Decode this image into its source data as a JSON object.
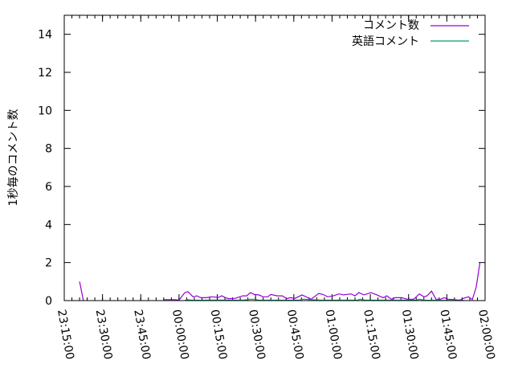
{
  "chart_data": {
    "type": "line",
    "title": "",
    "xlabel": "",
    "ylabel": "1秒毎のコメント数",
    "xlim": [
      "23:15:00",
      "02:00:00"
    ],
    "ylim": [
      0,
      15
    ],
    "xticks": [
      "23:15:00",
      "23:30:00",
      "23:45:00",
      "00:00:00",
      "00:15:00",
      "00:30:00",
      "00:45:00",
      "01:00:00",
      "01:15:00",
      "01:30:00",
      "01:45:00",
      "02:00:00"
    ],
    "yticks": [
      "0",
      "2",
      "4",
      "6",
      "8",
      "10",
      "12",
      "14"
    ],
    "grid": false,
    "legend_position": "top-right",
    "series": [
      {
        "name": "コメント数",
        "color": "#9400d3",
        "segments": [
          [
            [
              "23:21:00",
              1.0
            ],
            [
              "23:22:30",
              0
            ]
          ],
          [
            [
              "23:53:45",
              0.05
            ],
            [
              "23:58:30",
              0.05
            ],
            [
              "00:00:00",
              0.02
            ],
            [
              "00:02:15",
              0.42
            ],
            [
              "00:03:30",
              0.47
            ],
            [
              "00:05:30",
              0.2
            ],
            [
              "00:07:00",
              0.25
            ],
            [
              "00:08:30",
              0.15
            ],
            [
              "00:10:45",
              0.15
            ],
            [
              "00:12:30",
              0.2
            ],
            [
              "00:15:30",
              0.17
            ],
            [
              "00:16:45",
              0.25
            ],
            [
              "00:18:15",
              0.15
            ],
            [
              "00:19:30",
              0.1
            ],
            [
              "00:22:00",
              0.12
            ],
            [
              "00:25:00",
              0.25
            ],
            [
              "00:26:30",
              0.25
            ],
            [
              "00:28:00",
              0.42
            ],
            [
              "00:29:30",
              0.32
            ],
            [
              "00:31:15",
              0.3
            ],
            [
              "00:33:00",
              0.2
            ],
            [
              "00:34:45",
              0.2
            ],
            [
              "00:36:00",
              0.32
            ],
            [
              "00:38:30",
              0.25
            ],
            [
              "00:40:30",
              0.25
            ],
            [
              "00:42:15",
              0.1
            ],
            [
              "00:43:30",
              0.15
            ],
            [
              "00:45:30",
              0.12
            ],
            [
              "00:48:15",
              0.3
            ],
            [
              "00:51:45",
              0.07
            ],
            [
              "00:54:45",
              0.37
            ],
            [
              "00:56:30",
              0.32
            ],
            [
              "00:58:15",
              0.2
            ],
            [
              "01:00:30",
              0.25
            ],
            [
              "01:02:45",
              0.35
            ],
            [
              "01:04:30",
              0.3
            ],
            [
              "01:07:30",
              0.35
            ],
            [
              "01:09:00",
              0.25
            ],
            [
              "01:10:30",
              0.42
            ],
            [
              "01:12:30",
              0.3
            ],
            [
              "01:15:15",
              0.42
            ],
            [
              "01:17:15",
              0.32
            ],
            [
              "01:20:00",
              0.15
            ],
            [
              "01:21:30",
              0.25
            ],
            [
              "01:23:15",
              0.07
            ],
            [
              "01:24:45",
              0.15
            ],
            [
              "01:27:15",
              0.15
            ],
            [
              "01:29:30",
              0.07
            ],
            [
              "01:32:00",
              0.07
            ],
            [
              "01:34:15",
              0.35
            ],
            [
              "01:36:00",
              0.2
            ],
            [
              "01:37:15",
              0.25
            ],
            [
              "01:39:00",
              0.5
            ],
            [
              "01:40:45",
              0.07
            ],
            [
              "01:42:30",
              0.07
            ],
            [
              "01:44:00",
              0.15
            ],
            [
              "01:45:30",
              0.07
            ],
            [
              "01:47:45",
              0.05
            ],
            [
              "01:50:00",
              0.02
            ],
            [
              "01:51:30",
              0.12
            ],
            [
              "01:53:30",
              0.2
            ],
            [
              "01:55:00",
              0.05
            ],
            [
              "01:56:30",
              0.7
            ],
            [
              "01:58:00",
              2.0
            ]
          ]
        ]
      },
      {
        "name": "英語コメント",
        "color": "#009e73",
        "segments": [
          [
            [
              "00:02:15",
              0.0
            ],
            [
              "00:03:00",
              0.05
            ],
            [
              "00:05:00",
              0.02
            ],
            [
              "00:10:00",
              0.02
            ],
            [
              "00:15:00",
              0.03
            ],
            [
              "00:25:00",
              0.02
            ],
            [
              "00:28:00",
              0.07
            ],
            [
              "00:30:00",
              0.07
            ],
            [
              "00:31:00",
              0.02
            ],
            [
              "00:47:00",
              0.02
            ],
            [
              "00:48:30",
              0.07
            ],
            [
              "00:52:00",
              0.05
            ],
            [
              "00:56:00",
              0.02
            ],
            [
              "01:10:00",
              0.02
            ],
            [
              "01:11:00",
              0.07
            ],
            [
              "01:13:00",
              0.02
            ],
            [
              "01:33:00",
              0.02
            ],
            [
              "01:34:15",
              0.07
            ],
            [
              "01:36:00",
              0.02
            ],
            [
              "01:52:00",
              0.0
            ]
          ]
        ]
      }
    ]
  }
}
